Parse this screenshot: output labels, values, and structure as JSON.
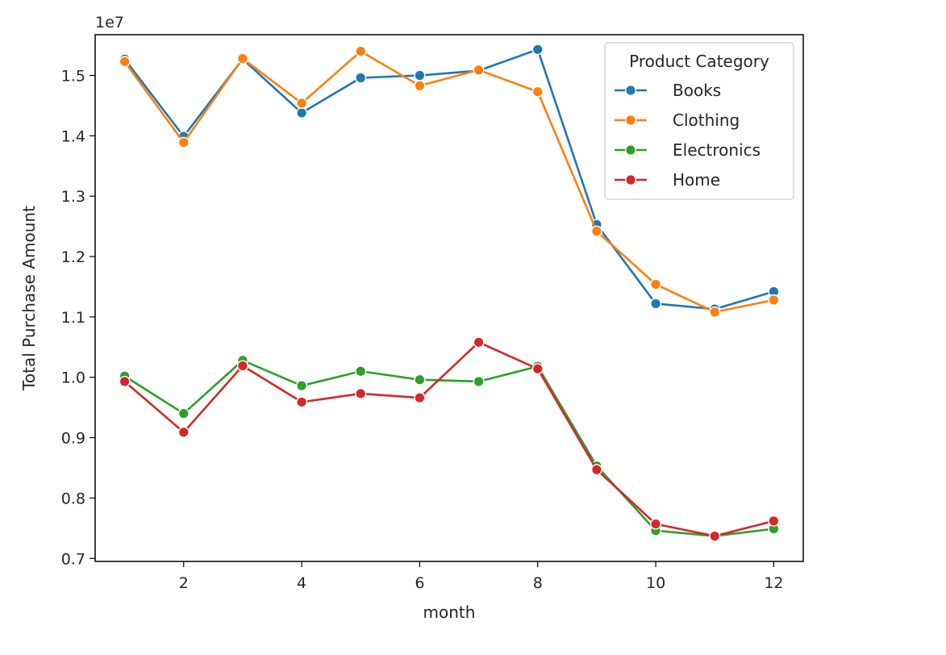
{
  "chart_data": {
    "type": "line",
    "title": "",
    "xlabel": "month",
    "ylabel": "Total Purchase Amount",
    "y_offset_label": "1e7",
    "xlim": [
      0.5,
      12.5
    ],
    "ylim": [
      0.695,
      1.5675
    ],
    "x_ticks": [
      2,
      4,
      6,
      8,
      10,
      12
    ],
    "x_tick_labels": [
      "2",
      "4",
      "6",
      "8",
      "10",
      "12"
    ],
    "y_ticks": [
      0.7,
      0.8,
      0.9,
      1.0,
      1.1,
      1.2,
      1.3,
      1.4,
      1.5
    ],
    "y_tick_labels": [
      "0.7",
      "0.8",
      "0.9",
      "1.0",
      "1.1",
      "1.2",
      "1.3",
      "1.4",
      "1.5"
    ],
    "grid": false,
    "legend": {
      "title": "Product Category",
      "placement": "top-right"
    },
    "x": [
      1,
      2,
      3,
      4,
      5,
      6,
      7,
      8,
      9,
      10,
      11,
      12
    ],
    "series": [
      {
        "name": "Books",
        "color": "#1f77b4",
        "values": [
          1.527,
          1.399,
          1.527,
          1.438,
          1.496,
          1.5,
          1.508,
          1.543,
          1.253,
          1.122,
          1.113,
          1.142
        ]
      },
      {
        "name": "Clothing",
        "color": "#ff7f0e",
        "values": [
          1.523,
          1.389,
          1.528,
          1.454,
          1.54,
          1.483,
          1.509,
          1.473,
          1.242,
          1.154,
          1.108,
          1.128
        ]
      },
      {
        "name": "Electronics",
        "color": "#2ca02c",
        "values": [
          1.002,
          0.94,
          1.028,
          0.986,
          1.01,
          0.996,
          0.993,
          1.018,
          0.853,
          0.746,
          0.737,
          0.749
        ]
      },
      {
        "name": "Home",
        "color": "#d62728",
        "values": [
          0.993,
          0.909,
          1.019,
          0.959,
          0.973,
          0.966,
          1.058,
          1.014,
          0.847,
          0.757,
          0.737,
          0.762
        ]
      }
    ]
  }
}
